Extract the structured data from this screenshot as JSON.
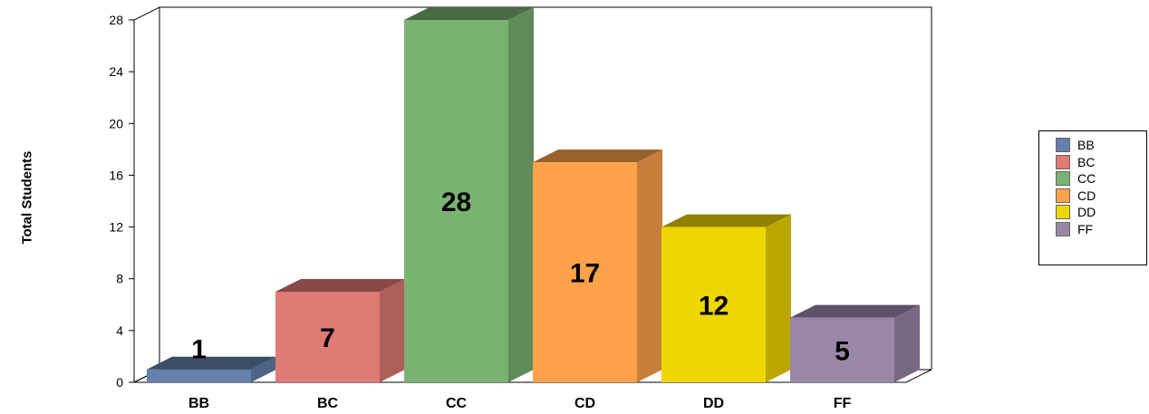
{
  "chart_data": {
    "type": "bar",
    "title": "",
    "xlabel": "",
    "ylabel": "Total Students",
    "categories": [
      "BB",
      "BC",
      "CC",
      "CD",
      "DD",
      "FF"
    ],
    "values": [
      1,
      7,
      28,
      17,
      12,
      5
    ],
    "data_labels": [
      "1",
      "7",
      "28",
      "17",
      "12",
      "5"
    ],
    "ylim": [
      0,
      28
    ],
    "yticks": [
      "0",
      "4",
      "8",
      "12",
      "16",
      "20",
      "24",
      "28"
    ],
    "grid": false,
    "three_d": true,
    "legend": {
      "position": "right",
      "entries": [
        "BB",
        "BC",
        "CC",
        "CD",
        "DD",
        "FF"
      ]
    },
    "colors": {
      "BB": "#6480ac",
      "BC": "#e07a74",
      "CC": "#7ab272",
      "CD": "#ffa24a",
      "DD": "#eed600",
      "FF": "#9a87a8"
    }
  }
}
